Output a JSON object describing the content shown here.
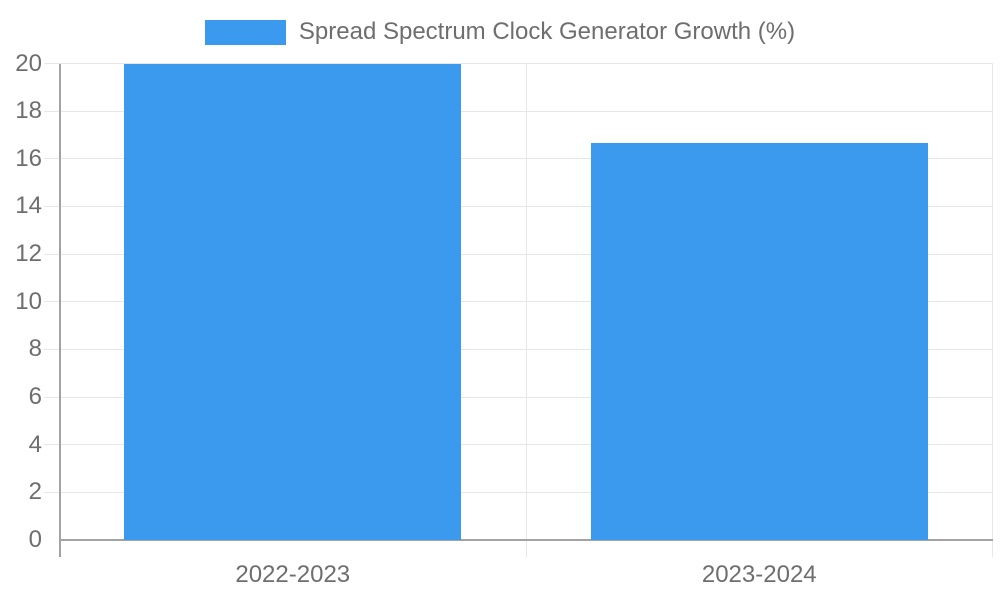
{
  "chart_data": {
    "type": "bar",
    "title": "Spread Spectrum Clock Generator Growth (%)",
    "categories": [
      "2022-2023",
      "2023-2024"
    ],
    "series": [
      {
        "name": "Spread Spectrum Clock Generator Growth (%)",
        "values": [
          20,
          16.67
        ]
      }
    ],
    "bar_value_labels": [
      "20",
      "16.67"
    ],
    "xlabel": "",
    "ylabel": "",
    "ylim": [
      0,
      20
    ],
    "ytick_step": 2,
    "ytick_labels": [
      "0",
      "2",
      "4",
      "6",
      "8",
      "10",
      "12",
      "14",
      "16",
      "18",
      "20"
    ],
    "grid": true,
    "legend_position": "top-center",
    "colors": {
      "bar": "#3b9aee",
      "grid": "#e7e7e7",
      "axis": "#a3a3a3",
      "text": "#6e6e6e",
      "value_label": "#ffffff",
      "background": "#ffffff"
    }
  }
}
